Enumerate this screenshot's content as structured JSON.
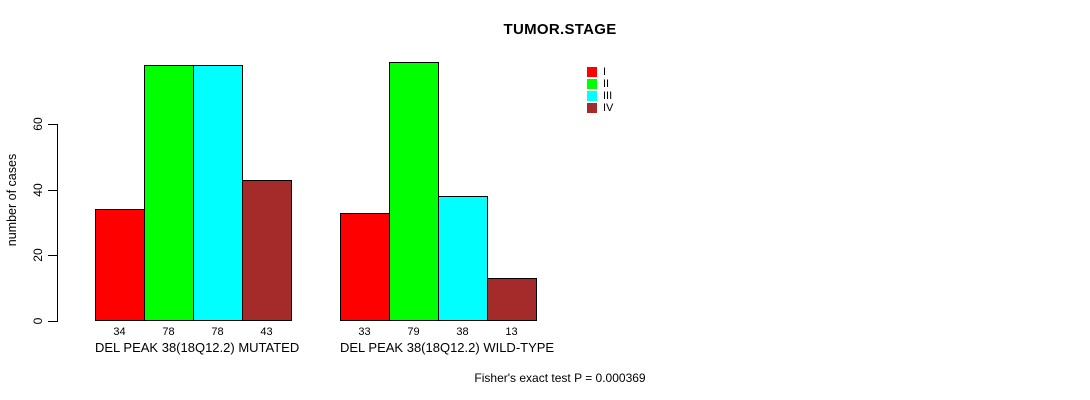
{
  "chart_data": {
    "type": "bar",
    "title": "TUMOR.STAGE",
    "ylabel": "number of cases",
    "ylim": [
      0,
      79
    ],
    "yticks": [
      0,
      20,
      40,
      60
    ],
    "grid": false,
    "legend_position": "top-right",
    "categories": [
      "DEL PEAK 38(18Q12.2) MUTATED",
      "DEL PEAK 38(18Q12.2) WILD-TYPE"
    ],
    "series": [
      {
        "name": "I",
        "color": "#ff0000",
        "values": [
          34,
          33
        ]
      },
      {
        "name": "II",
        "color": "#00ff00",
        "values": [
          78,
          79
        ]
      },
      {
        "name": "III",
        "color": "#00ffff",
        "values": [
          78,
          38
        ]
      },
      {
        "name": "IV",
        "color": "#a52a2a",
        "values": [
          43,
          13
        ]
      }
    ],
    "bar_value_labels": true,
    "annotation": "Fisher's exact test P = 0.000369"
  },
  "colors": {
    "axis": "#000000",
    "text": "#000000",
    "background": "#ffffff"
  }
}
